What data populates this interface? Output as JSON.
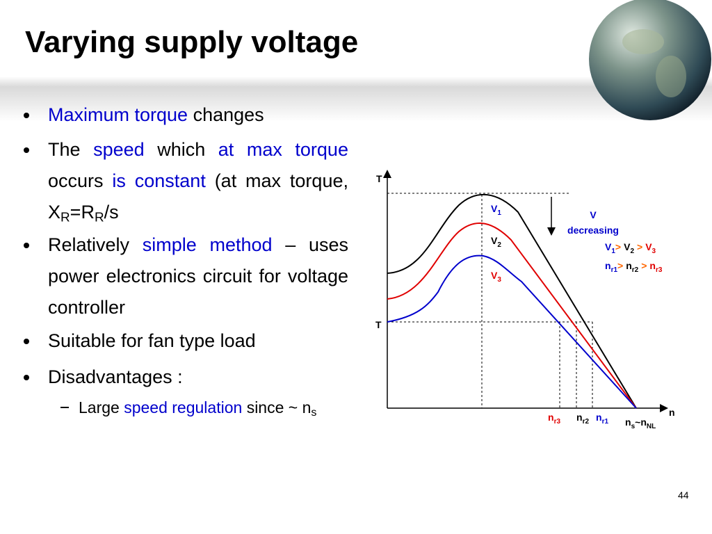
{
  "title": "Varying supply voltage",
  "bullets": [
    [
      "Maximum torque",
      "changes"
    ],
    [
      "The",
      "speed",
      "which",
      "at max torque",
      "occurs",
      "is constant",
      "(at max torque, X",
      "R",
      "=R",
      "R",
      "/s"
    ],
    [
      "Relatively",
      "simple method",
      "– uses power electronics circuit for voltage controller"
    ],
    [
      "Suitable for fan type load"
    ],
    [
      "Disadvantages :"
    ]
  ],
  "sub_bullet": [
    "Large",
    "speed regulation",
    "since ~ n",
    "s"
  ],
  "diagram": {
    "axis_y": "T",
    "load_torque": "T",
    "axis_x": "n",
    "curves": [
      {
        "main": "V",
        "sub": "1"
      },
      {
        "main": "V",
        "sub": "2"
      },
      {
        "main": "V",
        "sub": "3"
      }
    ],
    "arrow_label": [
      "V",
      "decreasing"
    ],
    "relation_v": {
      "terms": [
        {
          "main": "V",
          "sub": "1"
        },
        {
          "main": "V",
          "sub": "2"
        },
        {
          "main": "V",
          "sub": "3"
        }
      ],
      "ops": [
        ">",
        ">"
      ]
    },
    "relation_n": {
      "terms": [
        {
          "main": "n",
          "sub": "r1"
        },
        {
          "main": "n",
          "sub": "r2"
        },
        {
          "main": "n",
          "sub": "r3"
        }
      ],
      "ops": [
        ">",
        ">"
      ]
    },
    "speeds": [
      {
        "main": "n",
        "sub": "r3"
      },
      {
        "main": "n",
        "sub": "r2"
      },
      {
        "main": "n",
        "sub": "r1"
      }
    ],
    "sync": {
      "left": {
        "main": "n",
        "sub": "s"
      },
      "op": "~",
      "right": {
        "main": "n",
        "sub": "NL"
      }
    }
  },
  "page_number": "44"
}
